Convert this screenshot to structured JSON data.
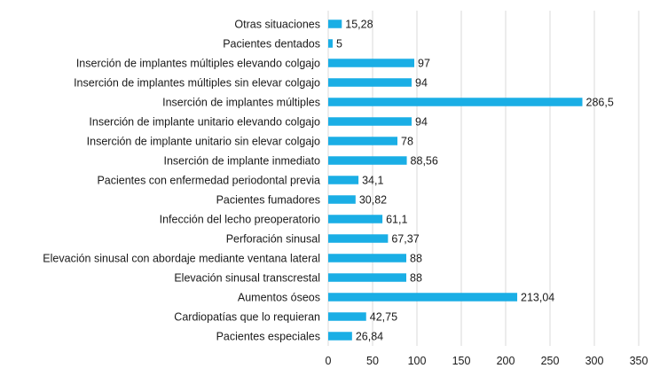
{
  "chart_data": {
    "type": "bar",
    "orientation": "horizontal",
    "categories": [
      "Otras situaciones",
      "Pacientes dentados",
      "Inserción de implantes múltiples elevando colgajo",
      "Inserción de implantes múltiples sin elevar colgajo",
      "Inserción de implantes múltiples",
      "Inserción de implante unitario elevando colgajo",
      "Inserción de implante unitario sin elevar colgajo",
      "Inserción de implante inmediato",
      "Pacientes con enfermedad periodontal previa",
      "Pacientes fumadores",
      "Infección del lecho preoperatorio",
      "Perforación sinusal",
      "Elevación sinusal con abordaje mediante ventana lateral",
      "Elevación sinusal transcrestal",
      "Aumentos óseos",
      "Cardiopatías que lo requieran",
      "Pacientes especiales"
    ],
    "values": [
      15.28,
      5,
      97,
      94,
      286.5,
      94,
      78,
      88.56,
      34.1,
      30.82,
      61.1,
      67.37,
      88,
      88,
      213.04,
      42.75,
      26.84
    ],
    "value_labels": [
      "15,28",
      "5",
      "97",
      "94",
      "286,5",
      "94",
      "78",
      "88,56",
      "34,1",
      "30,82",
      "61,1",
      "67,37",
      "88",
      "88",
      "213,04",
      "42,75",
      "26,84"
    ],
    "x_ticks": [
      "0",
      "50",
      "100",
      "150",
      "200",
      "250",
      "300",
      "350"
    ],
    "xlim": [
      0,
      350
    ],
    "grid": true,
    "bar_color": "#1aaee5",
    "grid_color": "#d9d9d9",
    "title": "",
    "xlabel": "",
    "ylabel": ""
  }
}
